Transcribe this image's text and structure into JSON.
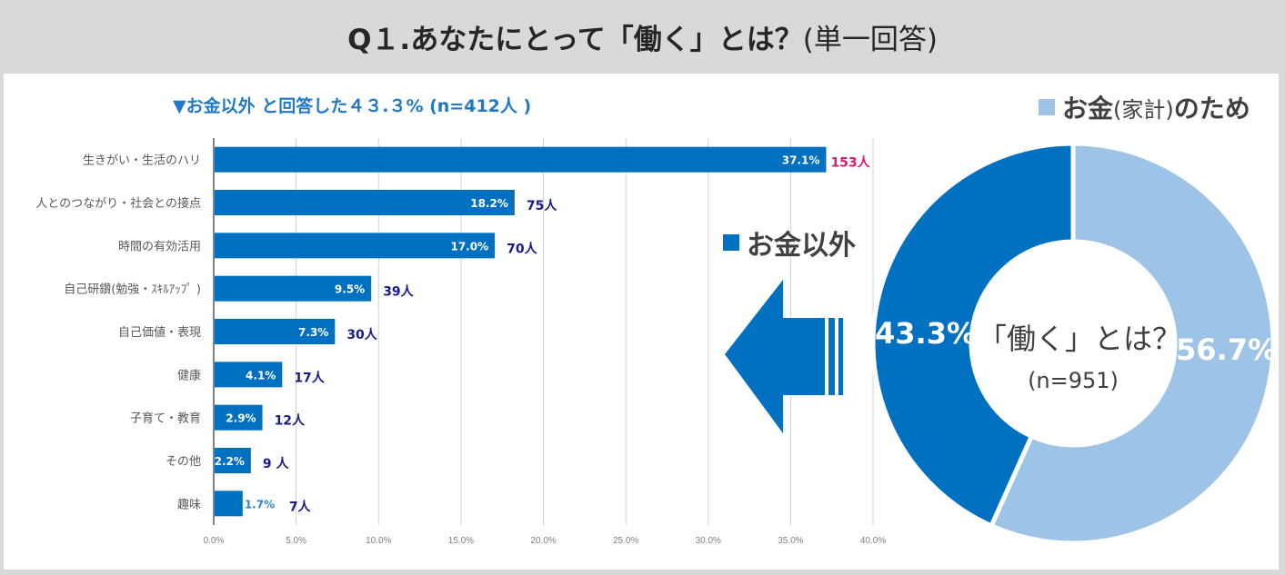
{
  "header": {
    "title_main": "Q１.あなたにとって「働く」とは？",
    "title_sub": "(単一回答)"
  },
  "subtitle": "▼お金以外 と回答した４３.３% (n=412人 )",
  "colors": {
    "primary_blue": "#0070c0",
    "light_blue": "#9dc3e6",
    "count_label": "#1a1a8c",
    "highlight_count": "#e0196e",
    "pct_outside_label": "#2e86d0"
  },
  "chart_data": [
    {
      "type": "bar",
      "orientation": "horizontal",
      "title": "▼お金以外 と回答した４３.３% (n=412人 )",
      "categories": [
        "生きがい・生活のハリ",
        "人とのつながり・社会との接点",
        "時間の有効活用",
        "自己研鑽(勉強・ｽｷﾙｱｯﾌﾟ )",
        "自己価値・表現",
        "健康",
        "子育て・教育",
        "その他",
        "趣味"
      ],
      "values": [
        37.1,
        18.2,
        17.0,
        9.5,
        7.3,
        4.1,
        2.9,
        2.2,
        1.7
      ],
      "value_labels": [
        "37.1%",
        "18.2%",
        "17.0%",
        "9.5%",
        "7.3%",
        "4.1%",
        "2.9%",
        "2.2%",
        "1.7%"
      ],
      "counts": [
        153,
        75,
        70,
        39,
        30,
        17,
        12,
        9,
        7
      ],
      "count_labels": [
        "153人",
        "75人",
        "70人",
        "39人",
        "30人",
        "17人",
        "12人",
        "9 人",
        "7人"
      ],
      "xlim": [
        0,
        40
      ],
      "xticks": [
        "0.0%",
        "5.0%",
        "10.0%",
        "15.0%",
        "20.0%",
        "25.0%",
        "30.0%",
        "35.0%",
        "40.0%"
      ],
      "grid": true,
      "xlabel": "",
      "ylabel": ""
    },
    {
      "type": "pie",
      "variant": "donut",
      "center_title": "「働く」とは？",
      "center_n": "(n=951)",
      "slices": [
        {
          "name": "お金(家計)のため",
          "value": 56.7,
          "label": "56.7%"
        },
        {
          "name": "お金以外",
          "value": 43.3,
          "label": "43.3%"
        }
      ]
    }
  ],
  "legend": {
    "money": {
      "main": "お金",
      "paren": "(家計)",
      "tail": "のため"
    },
    "other": "お金以外"
  },
  "arrow": {
    "icon": "left-arrow-icon",
    "direction": "left"
  }
}
